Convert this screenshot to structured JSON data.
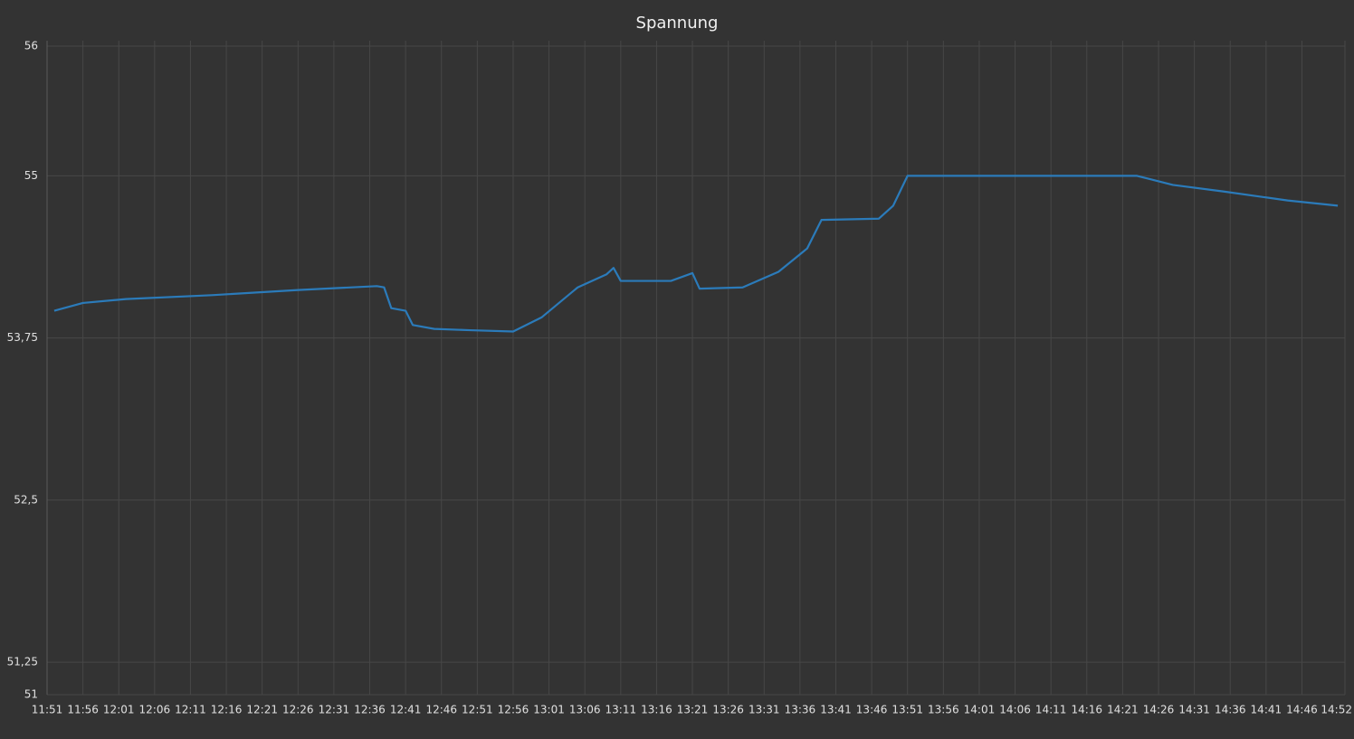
{
  "chart_data": {
    "type": "line",
    "title": "Spannung",
    "x": [
      "11:52",
      "11:56",
      "12:02",
      "12:14",
      "12:26",
      "12:37",
      "12:38",
      "12:39",
      "12:41",
      "12:42",
      "12:45",
      "12:50",
      "12:56",
      "13:00",
      "13:05",
      "13:09",
      "13:10",
      "13:11",
      "13:18",
      "13:21",
      "13:22",
      "13:28",
      "13:33",
      "13:37",
      "13:39",
      "13:47",
      "13:49",
      "13:51",
      "14:23",
      "14:28",
      "14:35",
      "14:44",
      "14:51"
    ],
    "series": [
      {
        "name": "Spannung",
        "color": "#2b7bba",
        "values": [
          53.96,
          54.02,
          54.05,
          54.08,
          54.12,
          54.15,
          54.14,
          53.98,
          53.96,
          53.85,
          53.82,
          53.81,
          53.8,
          53.91,
          54.14,
          54.24,
          54.29,
          54.19,
          54.19,
          54.25,
          54.13,
          54.14,
          54.26,
          54.44,
          54.66,
          54.67,
          54.77,
          55.0,
          55.0,
          54.93,
          54.88,
          54.81,
          54.77
        ]
      }
    ],
    "xlim": [
      "11:51",
      "14:52"
    ],
    "xticks": [
      "11:51",
      "11:56",
      "12:01",
      "12:06",
      "12:11",
      "12:16",
      "12:21",
      "12:26",
      "12:31",
      "12:36",
      "12:41",
      "12:46",
      "12:51",
      "12:56",
      "13:01",
      "13:06",
      "13:11",
      "13:16",
      "13:21",
      "13:26",
      "13:31",
      "13:36",
      "13:41",
      "13:46",
      "13:51",
      "13:56",
      "14:01",
      "14:06",
      "14:11",
      "14:16",
      "14:21",
      "14:26",
      "14:31",
      "14:36",
      "14:41",
      "14:46",
      "14:52"
    ],
    "ylim": [
      51,
      56
    ],
    "yticks": [
      51,
      {
        "value": 51.25,
        "label": "51,25"
      },
      {
        "value": 52.5,
        "label": "52,5"
      },
      {
        "value": 53.75,
        "label": "53,75"
      },
      55,
      56
    ],
    "grid": true
  }
}
